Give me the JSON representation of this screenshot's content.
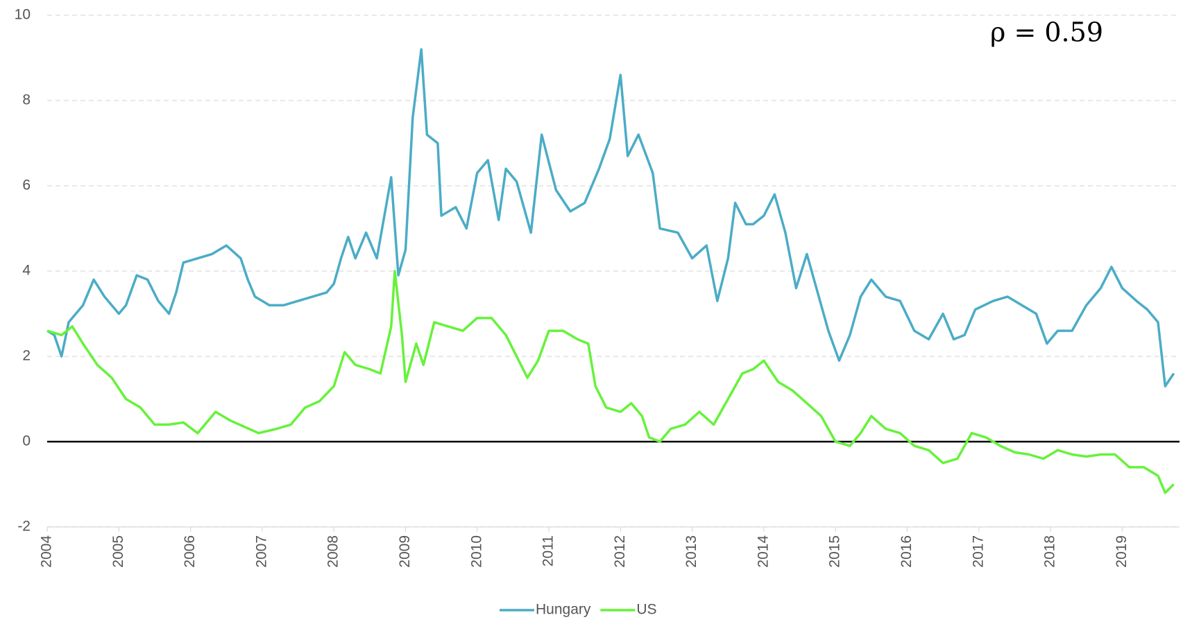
{
  "chart_data": {
    "type": "line",
    "annotation": "ρ = 0.59",
    "xlim": [
      2004,
      2019.8
    ],
    "xticks": [
      2004,
      2005,
      2006,
      2007,
      2008,
      2009,
      2010,
      2011,
      2012,
      2013,
      2014,
      2015,
      2016,
      2017,
      2018,
      2019
    ],
    "ylim": [
      -2,
      10
    ],
    "yticks": [
      -2,
      0,
      2,
      4,
      6,
      8,
      10
    ],
    "grid": true,
    "legend": "bottom",
    "series": [
      {
        "name": "Hungary",
        "color": "#4bacc6",
        "x": [
          2004.0,
          2004.1,
          2004.2,
          2004.3,
          2004.5,
          2004.65,
          2004.8,
          2005.0,
          2005.1,
          2005.25,
          2005.4,
          2005.55,
          2005.7,
          2005.8,
          2005.9,
          2006.1,
          2006.3,
          2006.5,
          2006.7,
          2006.8,
          2006.9,
          2007.1,
          2007.3,
          2007.5,
          2007.7,
          2007.9,
          2008.0,
          2008.1,
          2008.2,
          2008.3,
          2008.45,
          2008.6,
          2008.8,
          2008.9,
          2009.0,
          2009.1,
          2009.22,
          2009.3,
          2009.45,
          2009.5,
          2009.7,
          2009.85,
          2010.0,
          2010.15,
          2010.3,
          2010.4,
          2010.55,
          2010.75,
          2010.9,
          2011.1,
          2011.3,
          2011.5,
          2011.7,
          2011.85,
          2012.0,
          2012.1,
          2012.25,
          2012.45,
          2012.55,
          2012.8,
          2013.0,
          2013.2,
          2013.35,
          2013.5,
          2013.6,
          2013.75,
          2013.85,
          2014.0,
          2014.15,
          2014.3,
          2014.45,
          2014.6,
          2014.75,
          2014.9,
          2015.05,
          2015.2,
          2015.35,
          2015.5,
          2015.7,
          2015.9,
          2016.1,
          2016.3,
          2016.5,
          2016.65,
          2016.8,
          2016.95,
          2017.2,
          2017.4,
          2017.6,
          2017.8,
          2017.95,
          2018.1,
          2018.3,
          2018.5,
          2018.7,
          2018.85,
          2019.0,
          2019.2,
          2019.35,
          2019.5,
          2019.6,
          2019.72
        ],
        "values": [
          2.6,
          2.5,
          2.0,
          2.8,
          3.2,
          3.8,
          3.4,
          3.0,
          3.2,
          3.9,
          3.8,
          3.3,
          3.0,
          3.5,
          4.2,
          4.3,
          4.4,
          4.6,
          4.3,
          3.8,
          3.4,
          3.2,
          3.2,
          3.3,
          3.4,
          3.5,
          3.7,
          4.3,
          4.8,
          4.3,
          4.9,
          4.3,
          6.2,
          3.9,
          4.5,
          7.6,
          9.2,
          7.2,
          7.0,
          5.3,
          5.5,
          5.0,
          6.3,
          6.6,
          5.2,
          6.4,
          6.1,
          4.9,
          7.2,
          5.9,
          5.4,
          5.6,
          6.4,
          7.1,
          8.6,
          6.7,
          7.2,
          6.3,
          5.0,
          4.9,
          4.3,
          4.6,
          3.3,
          4.3,
          5.6,
          5.1,
          5.1,
          5.3,
          5.8,
          4.9,
          3.6,
          4.4,
          3.5,
          2.6,
          1.9,
          2.5,
          3.4,
          3.8,
          3.4,
          3.3,
          2.6,
          2.4,
          3.0,
          2.4,
          2.5,
          3.1,
          3.3,
          3.4,
          3.2,
          3.0,
          2.3,
          2.6,
          2.6,
          3.2,
          3.6,
          4.1,
          3.6,
          3.3,
          3.1,
          2.8,
          1.3,
          1.6
        ]
      },
      {
        "name": "US",
        "color": "#66f23a",
        "x": [
          2004.0,
          2004.2,
          2004.35,
          2004.5,
          2004.7,
          2004.9,
          2005.1,
          2005.3,
          2005.5,
          2005.7,
          2005.9,
          2006.1,
          2006.35,
          2006.55,
          2006.75,
          2006.95,
          2007.2,
          2007.4,
          2007.6,
          2007.8,
          2008.0,
          2008.15,
          2008.3,
          2008.5,
          2008.65,
          2008.8,
          2008.85,
          2008.95,
          2009.0,
          2009.15,
          2009.25,
          2009.4,
          2009.6,
          2009.8,
          2010.0,
          2010.2,
          2010.4,
          2010.55,
          2010.7,
          2010.85,
          2011.0,
          2011.2,
          2011.4,
          2011.55,
          2011.65,
          2011.8,
          2012.0,
          2012.15,
          2012.3,
          2012.4,
          2012.55,
          2012.7,
          2012.9,
          2013.1,
          2013.3,
          2013.5,
          2013.7,
          2013.85,
          2014.0,
          2014.2,
          2014.4,
          2014.6,
          2014.8,
          2015.0,
          2015.2,
          2015.35,
          2015.5,
          2015.7,
          2015.9,
          2016.1,
          2016.3,
          2016.5,
          2016.7,
          2016.9,
          2017.1,
          2017.3,
          2017.5,
          2017.7,
          2017.9,
          2018.1,
          2018.3,
          2018.5,
          2018.7,
          2018.9,
          2019.1,
          2019.3,
          2019.5,
          2019.6,
          2019.72
        ],
        "values": [
          2.6,
          2.5,
          2.7,
          2.3,
          1.8,
          1.5,
          1.0,
          0.8,
          0.4,
          0.4,
          0.45,
          0.2,
          0.7,
          0.5,
          0.35,
          0.2,
          0.3,
          0.4,
          0.8,
          0.95,
          1.3,
          2.1,
          1.8,
          1.7,
          1.6,
          2.7,
          4.0,
          2.5,
          1.4,
          2.3,
          1.8,
          2.8,
          2.7,
          2.6,
          2.9,
          2.9,
          2.5,
          2.0,
          1.5,
          1.9,
          2.6,
          2.6,
          2.4,
          2.3,
          1.3,
          0.8,
          0.7,
          0.9,
          0.6,
          0.1,
          0.0,
          0.3,
          0.4,
          0.7,
          0.4,
          1.0,
          1.6,
          1.7,
          1.9,
          1.4,
          1.2,
          0.9,
          0.6,
          0.0,
          -0.1,
          0.2,
          0.6,
          0.3,
          0.2,
          -0.1,
          -0.2,
          -0.5,
          -0.4,
          0.2,
          0.1,
          -0.1,
          -0.25,
          -0.3,
          -0.4,
          -0.2,
          -0.3,
          -0.35,
          -0.3,
          -0.3,
          -0.6,
          -0.6,
          -0.8,
          -1.2,
          -1.0
        ]
      }
    ]
  }
}
